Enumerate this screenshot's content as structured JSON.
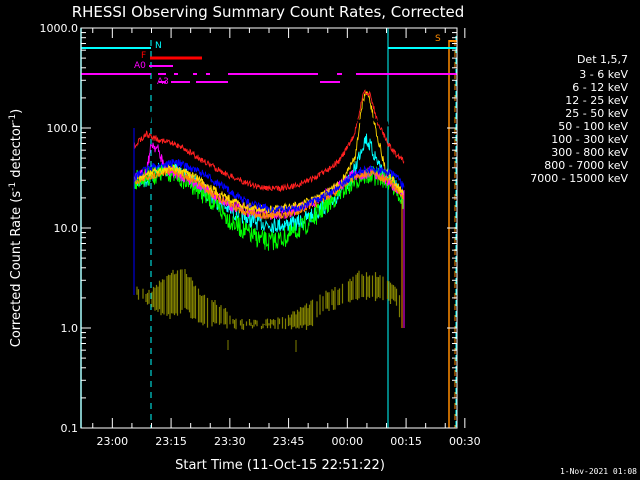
{
  "chart_data": {
    "type": "line",
    "title": "RHESSI Observing Summary Count Rates, Corrected",
    "xlabel": "Start Time (11-Oct-15 22:51:22)",
    "ylabel": "Corrected Count Rate (s",
    "ylabel_sup": "-1",
    "ylabel_mid": " detector",
    "ylabel_end": ")",
    "yscale": "log",
    "ylim": [
      0.1,
      1000
    ],
    "xlim_minutes": [
      -8,
      88
    ],
    "x_tick_labels": [
      "23:00",
      "23:15",
      "23:30",
      "23:45",
      "00:00",
      "00:15",
      "00:30"
    ],
    "x_tick_minutes": [
      0,
      15,
      30,
      45,
      60,
      75,
      90
    ],
    "y_tick_labels": [
      "0.1",
      "1.0",
      "10.0",
      "100.0",
      "1000.0"
    ],
    "y_tick_values": [
      0.1,
      1,
      10,
      100,
      1000
    ],
    "legend_title": "Det 1,5,7",
    "legend_position": "right",
    "footer": "1-Nov-2021 01:08",
    "series": [
      {
        "name": "3 - 6 keV",
        "color": "#000000"
      },
      {
        "name": "6 - 12 keV",
        "color": "#ff00ff"
      },
      {
        "name": "12 - 25 keV",
        "color": "#00ff00"
      },
      {
        "name": "25 - 50 keV",
        "color": "#00ffff"
      },
      {
        "name": "50 - 100 keV",
        "color": "#ffd700"
      },
      {
        "name": "100 - 300 keV",
        "color": "#ff2020"
      },
      {
        "name": "300 - 800 keV",
        "color": "#0000ff"
      },
      {
        "name": "800 - 7000 keV",
        "color": "#ff8c00"
      },
      {
        "name": "7000 - 15000 keV",
        "color": "#808000"
      }
    ],
    "annotations": [
      "N",
      "F",
      "A0",
      "A3",
      "S"
    ]
  }
}
